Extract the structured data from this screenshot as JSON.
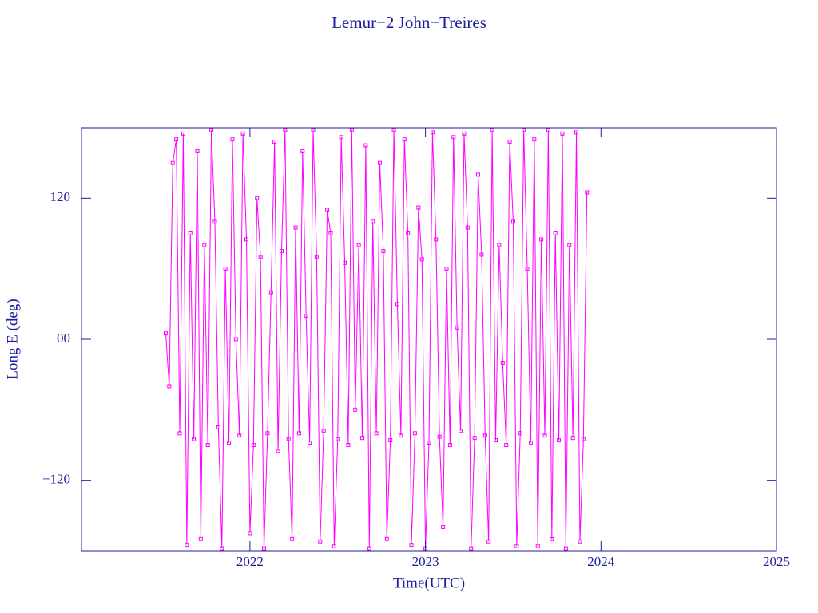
{
  "chart_data": {
    "type": "line",
    "title": "Lemur−2 John−Treires",
    "x_label": "Time(UTC)",
    "y_label": "Long E (deg)",
    "xlim": [
      2021.04,
      2025.0
    ],
    "ylim": [
      -180,
      180
    ],
    "xticks": [
      2022,
      2023,
      2024,
      2025
    ],
    "yticks": [
      {
        "value": -120,
        "label": "−120"
      },
      {
        "value": 0,
        "label": "00"
      },
      120
    ],
    "axis_color": "#1c1c9c",
    "series": [
      {
        "color": "#ff00ff",
        "x": [
          2021.52,
          2021.54,
          2021.56,
          2021.58,
          2021.6,
          2021.62,
          2021.64,
          2021.66,
          2021.68,
          2021.7,
          2021.72,
          2021.74,
          2021.76,
          2021.78,
          2021.8,
          2021.82,
          2021.84,
          2021.86,
          2021.88,
          2021.9,
          2021.92,
          2021.94,
          2021.96,
          2021.98,
          2022.0,
          2022.02,
          2022.04,
          2022.06,
          2022.08,
          2022.1,
          2022.12,
          2022.14,
          2022.16,
          2022.18,
          2022.2,
          2022.22,
          2022.24,
          2022.26,
          2022.28,
          2022.3,
          2022.32,
          2022.34,
          2022.36,
          2022.38,
          2022.4,
          2022.42,
          2022.44,
          2022.46,
          2022.48,
          2022.5,
          2022.52,
          2022.54,
          2022.56,
          2022.58,
          2022.6,
          2022.62,
          2022.64,
          2022.66,
          2022.68,
          2022.7,
          2022.72,
          2022.74,
          2022.76,
          2022.78,
          2022.8,
          2022.82,
          2022.84,
          2022.86,
          2022.88,
          2022.9,
          2022.92,
          2022.94,
          2022.96,
          2022.98,
          2023.0,
          2023.02,
          2023.04,
          2023.06,
          2023.08,
          2023.1,
          2023.12,
          2023.14,
          2023.16,
          2023.18,
          2023.2,
          2023.22,
          2023.24,
          2023.26,
          2023.28,
          2023.3,
          2023.32,
          2023.34,
          2023.36,
          2023.38,
          2023.4,
          2023.42,
          2023.44,
          2023.46,
          2023.48,
          2023.5,
          2023.52,
          2023.54,
          2023.56,
          2023.58,
          2023.6,
          2023.62,
          2023.64,
          2023.66,
          2023.68,
          2023.7,
          2023.72,
          2023.74,
          2023.76,
          2023.78,
          2023.8,
          2023.82,
          2023.84,
          2023.86,
          2023.88,
          2023.9,
          2023.92
        ],
        "values": [
          5,
          -40,
          150,
          170,
          -80,
          175,
          -175,
          90,
          -85,
          160,
          -170,
          80,
          -90,
          178,
          100,
          -75,
          -178,
          60,
          -88,
          170,
          0,
          -82,
          175,
          85,
          -165,
          -90,
          120,
          70,
          -178,
          -80,
          40,
          168,
          -95,
          75,
          178,
          -85,
          -170,
          95,
          -80,
          160,
          20,
          -88,
          178,
          70,
          -172,
          -78,
          110,
          90,
          -176,
          -85,
          172,
          65,
          -90,
          178,
          -60,
          80,
          -84,
          165,
          -178,
          100,
          -80,
          150,
          75,
          -170,
          -86,
          178,
          30,
          -82,
          170,
          90,
          -175,
          -80,
          112,
          68,
          -178,
          -88,
          176,
          85,
          -83,
          -160,
          60,
          -90,
          172,
          10,
          -78,
          175,
          95,
          -178,
          -84,
          140,
          72,
          -82,
          -172,
          178,
          -86,
          80,
          -20,
          -90,
          168,
          100,
          -176,
          -80,
          178,
          60,
          -88,
          170,
          -176,
          85,
          -82,
          178,
          -170,
          90,
          -86,
          175,
          -178,
          80,
          -84,
          176,
          -172,
          -85,
          125
        ]
      }
    ]
  }
}
